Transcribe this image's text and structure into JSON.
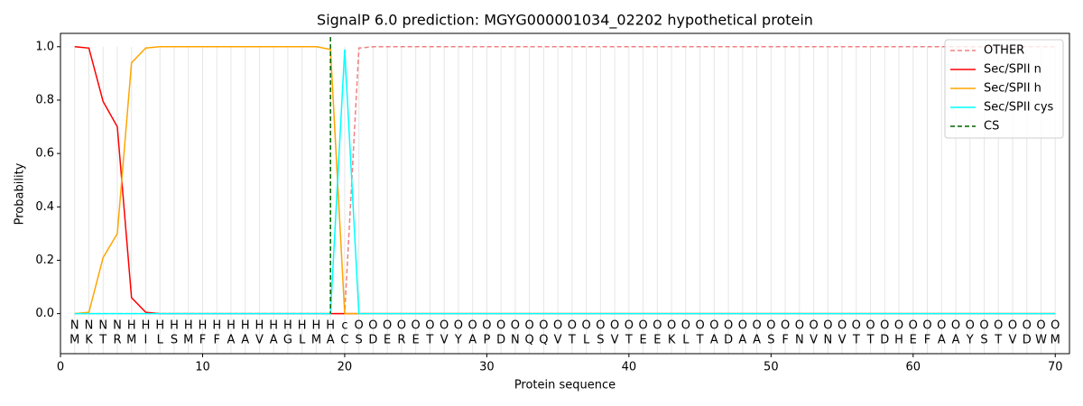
{
  "chart_data": {
    "type": "line",
    "title": "SignalP 6.0 prediction: MGYG000001034_02202 hypothetical protein",
    "xlabel": "Protein sequence",
    "ylabel": "Probability",
    "xlim": [
      0,
      71
    ],
    "ylim": [
      -0.15,
      1.05
    ],
    "xticks": [
      0,
      10,
      20,
      30,
      40,
      50,
      60,
      70
    ],
    "yticks": [
      {
        "value": 0,
        "label": "0.0"
      },
      {
        "value": 0.2,
        "label": "0.2"
      },
      {
        "value": 0.4,
        "label": "0.4"
      },
      {
        "value": 0.6,
        "label": "0.6"
      },
      {
        "value": 0.8,
        "label": "0.8"
      },
      {
        "value": 1,
        "label": "1.0"
      }
    ],
    "grid": true,
    "legend": "upper right",
    "x": [
      1,
      2,
      3,
      4,
      5,
      6,
      7,
      8,
      9,
      10,
      11,
      12,
      13,
      14,
      15,
      16,
      17,
      18,
      19,
      20,
      21,
      22,
      23,
      24,
      25,
      26,
      27,
      28,
      29,
      30,
      31,
      32,
      33,
      34,
      35,
      36,
      37,
      38,
      39,
      40,
      41,
      42,
      43,
      44,
      45,
      46,
      47,
      48,
      49,
      50,
      51,
      52,
      53,
      54,
      55,
      56,
      57,
      58,
      59,
      60,
      61,
      62,
      63,
      64,
      65,
      66,
      67,
      68,
      69,
      70
    ],
    "residues": [
      "M",
      "K",
      "T",
      "R",
      "M",
      "I",
      "L",
      "S",
      "M",
      "F",
      "F",
      "A",
      "A",
      "V",
      "A",
      "G",
      "L",
      "M",
      "A",
      "C",
      "S",
      "D",
      "E",
      "R",
      "E",
      "T",
      "V",
      "Y",
      "A",
      "P",
      "D",
      "N",
      "Q",
      "Q",
      "V",
      "T",
      "L",
      "S",
      "V",
      "T",
      "E",
      "E",
      "K",
      "L",
      "T",
      "A",
      "D",
      "A",
      "A",
      "S",
      "F",
      "N",
      "V",
      "N",
      "V",
      "T",
      "T",
      "D",
      "H",
      "E",
      "F",
      "A",
      "A",
      "Y",
      "S",
      "T",
      "V",
      "D",
      "W",
      "M"
    ],
    "labels": [
      "N",
      "N",
      "N",
      "N",
      "H",
      "H",
      "H",
      "H",
      "H",
      "H",
      "H",
      "H",
      "H",
      "H",
      "H",
      "H",
      "H",
      "H",
      "H",
      "c",
      "O",
      "O",
      "O",
      "O",
      "O",
      "O",
      "O",
      "O",
      "O",
      "O",
      "O",
      "O",
      "O",
      "O",
      "O",
      "O",
      "O",
      "O",
      "O",
      "O",
      "O",
      "O",
      "O",
      "O",
      "O",
      "O",
      "O",
      "O",
      "O",
      "O",
      "O",
      "O",
      "O",
      "O",
      "O",
      "O",
      "O",
      "O",
      "O",
      "O",
      "O",
      "O",
      "O",
      "O",
      "O",
      "O",
      "O",
      "O",
      "O",
      "O"
    ],
    "label_colors": {
      "N": "#ff0000",
      "H": "#ffa500",
      "c": "#00ffff",
      "O": "#808080"
    },
    "series": [
      {
        "name": "OTHER",
        "color": "#f08080",
        "dash": true,
        "values": [
          0,
          0,
          0,
          0,
          0,
          0,
          0,
          0,
          0,
          0,
          0,
          0,
          0,
          0,
          0,
          0,
          0,
          0,
          0,
          0,
          0.995,
          1,
          1,
          1,
          1,
          1,
          1,
          1,
          1,
          1,
          1,
          1,
          1,
          1,
          1,
          1,
          1,
          1,
          1,
          1,
          1,
          1,
          1,
          1,
          1,
          1,
          1,
          1,
          1,
          1,
          1,
          1,
          1,
          1,
          1,
          1,
          1,
          1,
          1,
          1,
          1,
          1,
          1,
          1,
          1,
          1,
          1,
          1,
          1,
          1
        ]
      },
      {
        "name": "Sec/SPII n",
        "color": "#ff0000",
        "values": [
          1.0,
          0.995,
          0.795,
          0.7,
          0.06,
          0.005,
          0,
          0,
          0,
          0,
          0,
          0,
          0,
          0,
          0,
          0,
          0,
          0,
          0,
          0,
          0,
          0,
          0,
          0,
          0,
          0,
          0,
          0,
          0,
          0,
          0,
          0,
          0,
          0,
          0,
          0,
          0,
          0,
          0,
          0,
          0,
          0,
          0,
          0,
          0,
          0,
          0,
          0,
          0,
          0,
          0,
          0,
          0,
          0,
          0,
          0,
          0,
          0,
          0,
          0,
          0,
          0,
          0,
          0,
          0,
          0,
          0,
          0,
          0,
          0
        ]
      },
      {
        "name": "Sec/SPII h",
        "color": "#ffa500",
        "values": [
          0,
          0.005,
          0.21,
          0.3,
          0.94,
          0.995,
          1,
          1,
          1,
          1,
          1,
          1,
          1,
          1,
          1,
          1,
          1,
          1,
          0.99,
          0,
          0,
          0,
          0,
          0,
          0,
          0,
          0,
          0,
          0,
          0,
          0,
          0,
          0,
          0,
          0,
          0,
          0,
          0,
          0,
          0,
          0,
          0,
          0,
          0,
          0,
          0,
          0,
          0,
          0,
          0,
          0,
          0,
          0,
          0,
          0,
          0,
          0,
          0,
          0,
          0,
          0,
          0,
          0,
          0,
          0,
          0,
          0,
          0,
          0,
          0
        ]
      },
      {
        "name": "Sec/SPII cys",
        "color": "#00ffff",
        "values": [
          0,
          0,
          0,
          0,
          0,
          0,
          0,
          0,
          0,
          0,
          0,
          0,
          0,
          0,
          0,
          0,
          0,
          0,
          0,
          0.99,
          0,
          0,
          0,
          0,
          0,
          0,
          0,
          0,
          0,
          0,
          0,
          0,
          0,
          0,
          0,
          0,
          0,
          0,
          0,
          0,
          0,
          0,
          0,
          0,
          0,
          0,
          0,
          0,
          0,
          0,
          0,
          0,
          0,
          0,
          0,
          0,
          0,
          0,
          0,
          0,
          0,
          0,
          0,
          0,
          0,
          0,
          0,
          0,
          0,
          0
        ]
      }
    ],
    "cs": {
      "name": "CS",
      "x": 19,
      "color": "#006400"
    }
  }
}
